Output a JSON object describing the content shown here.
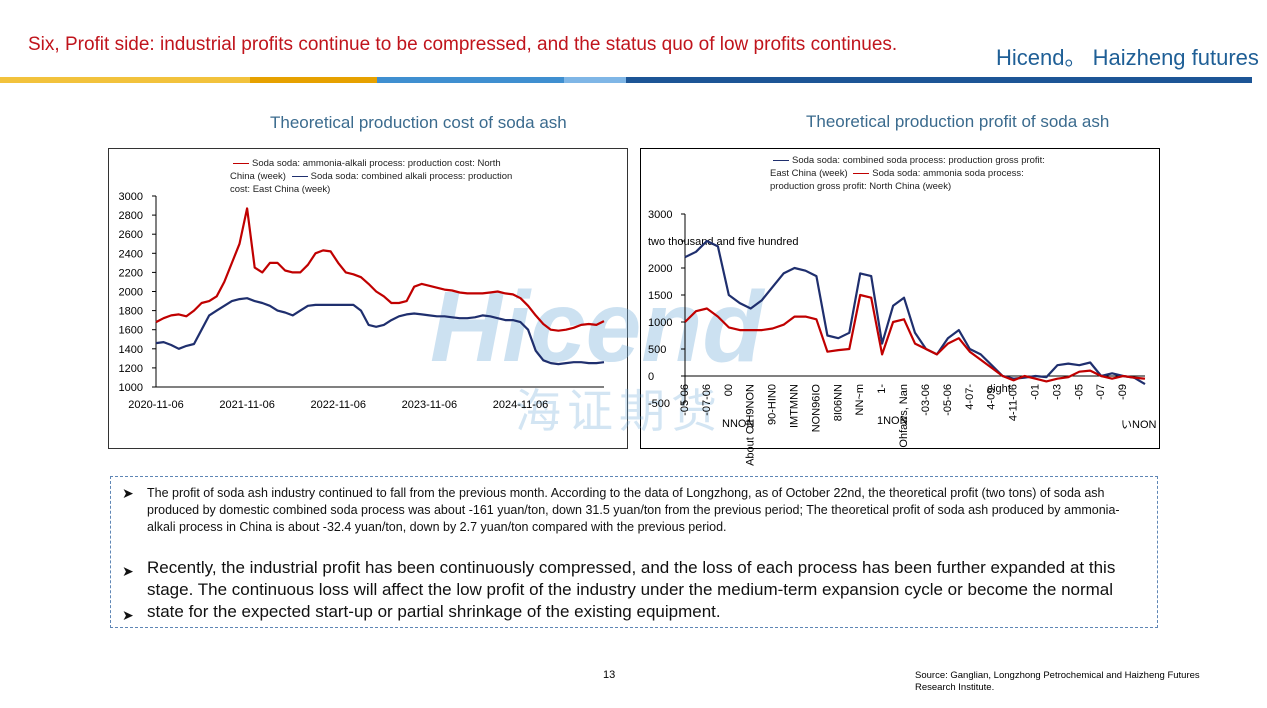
{
  "slide": {
    "title": "Six, Profit side: industrial profits continue to be compressed, and the status quo of low profits continues.",
    "logo": "Hicend。 Haizheng futures",
    "watermark": [
      "Hicend",
      "海证期货"
    ],
    "bullets": [
      "The profit of soda ash industry continued to fall from the previous month. According to the data of Longzhong, as of October 22nd, the theoretical profit (two tons) of soda ash produced by domestic combined soda process was about -161 yuan/ton, down 31.5 yuan/ton from the previous period; The theoretical profit of soda ash produced by ammonia-alkali process in China is about -32.4 yuan/ton, down by 2.7 yuan/ton compared with the previous period.",
      "Recently, the industrial profit has been continuously compressed, and the loss of each process has been further expanded at this stage. The continuous loss will affect the low profit of the industry under the medium-term expansion cycle or become the normal state for the expected start-up or partial shrinkage of the existing equipment."
    ],
    "page_number": "13",
    "source": "Source: Ganglian, Longzhong Petrochemical and Haizheng Futures Research Institute."
  },
  "chart_data": [
    {
      "type": "line",
      "title": "Theoretical production cost of soda ash",
      "categories": [
        "2020-11-06",
        null,
        null,
        null,
        null,
        null,
        null,
        null,
        null,
        null,
        null,
        null,
        "2021-11-06",
        null,
        null,
        null,
        null,
        null,
        null,
        null,
        null,
        null,
        null,
        null,
        "2022-11-06",
        null,
        null,
        null,
        null,
        null,
        null,
        null,
        null,
        null,
        null,
        null,
        "2023-11-06",
        null,
        null,
        null,
        null,
        null,
        null,
        null,
        null,
        null,
        null,
        null,
        "2024-11-06",
        null,
        null,
        null,
        null,
        null,
        null,
        null,
        null,
        null,
        null,
        null
      ],
      "ylim": [
        1000,
        3000
      ],
      "yticks": [
        1000,
        1200,
        1400,
        1600,
        1800,
        2000,
        2200,
        2400,
        2600,
        2800,
        3000
      ],
      "series": [
        {
          "name": "Soda soda: ammonia-alkali process: production cost: North China (week)",
          "color": "#c00000",
          "values": [
            1680,
            1720,
            1750,
            1760,
            1740,
            1800,
            1880,
            1900,
            1950,
            2100,
            2300,
            2500,
            2870,
            2250,
            2200,
            2300,
            2300,
            2220,
            2200,
            2200,
            2280,
            2400,
            2430,
            2420,
            2300,
            2200,
            2180,
            2150,
            2080,
            2000,
            1950,
            1880,
            1880,
            1900,
            2050,
            2080,
            2060,
            2040,
            2020,
            2010,
            1990,
            1980,
            1980,
            1980,
            1990,
            2000,
            1980,
            1970,
            1930,
            1850,
            1750,
            1660,
            1600,
            1590,
            1600,
            1620,
            1650,
            1660,
            1650,
            1690
          ]
        },
        {
          "name": "Soda soda: combined alkali process: production cost: East China (week)",
          "color": "#1f2f6e",
          "values": [
            1460,
            1470,
            1440,
            1400,
            1430,
            1450,
            1600,
            1750,
            1800,
            1850,
            1900,
            1920,
            1930,
            1900,
            1880,
            1850,
            1800,
            1780,
            1750,
            1800,
            1850,
            1860,
            1860,
            1860,
            1860,
            1860,
            1860,
            1800,
            1650,
            1630,
            1650,
            1700,
            1740,
            1760,
            1770,
            1760,
            1750,
            1740,
            1740,
            1730,
            1720,
            1720,
            1730,
            1750,
            1740,
            1720,
            1700,
            1700,
            1680,
            1600,
            1380,
            1280,
            1250,
            1240,
            1250,
            1260,
            1260,
            1250,
            1250,
            1260
          ]
        }
      ]
    },
    {
      "type": "line",
      "title": "Theoretical production profit of soda ash",
      "categories": [
        "-05-06",
        null,
        "-07-06",
        null,
        "00",
        null,
        "About OIH9NON",
        null,
        "90-HIN0",
        null,
        "IMTMNN",
        null,
        "NON96IO",
        null,
        "8I06NN",
        null,
        "NN~m",
        null,
        "1-",
        null,
        "Ohfaws, Nan",
        null,
        "-03-06",
        null,
        "-05-06",
        null,
        "4-07-",
        null,
        "4-09-",
        null,
        "4-11-06",
        null,
        "-01",
        null,
        "-03",
        null,
        "-05",
        null,
        "-07",
        null,
        "-09",
        null,
        null
      ],
      "annotations": [
        "NNON",
        "1NON",
        "いNON",
        "eight"
      ],
      "ylim": [
        -500,
        3000
      ],
      "yticks": [
        -500,
        0,
        500,
        1000,
        1500,
        2000,
        {
          "value": 2500,
          "label": "two thousand and five hundred"
        },
        3000
      ],
      "series": [
        {
          "name": "Soda soda: combined soda process: production gross profit: East China (week)",
          "color": "#1f2f6e",
          "values": [
            2200,
            2300,
            2500,
            2400,
            1500,
            1350,
            1250,
            1400,
            1650,
            1900,
            2000,
            1950,
            1850,
            750,
            700,
            800,
            1900,
            1850,
            600,
            1300,
            1450,
            800,
            500,
            400,
            700,
            850,
            500,
            400,
            200,
            0,
            -50,
            -30,
            0,
            -20,
            200,
            230,
            200,
            250,
            0,
            50,
            0,
            -30,
            -150
          ]
        },
        {
          "name": "Soda soda: ammonia soda process: production gross profit: North China (week)",
          "color": "#c00000",
          "values": [
            1000,
            1200,
            1250,
            1100,
            900,
            850,
            850,
            850,
            880,
            950,
            1100,
            1100,
            1050,
            450,
            480,
            500,
            1500,
            1450,
            400,
            1000,
            1050,
            600,
            500,
            400,
            600,
            700,
            450,
            300,
            150,
            0,
            -80,
            0,
            -50,
            -100,
            -50,
            -20,
            80,
            100,
            0,
            -50,
            0,
            -30,
            -50
          ]
        }
      ]
    }
  ]
}
